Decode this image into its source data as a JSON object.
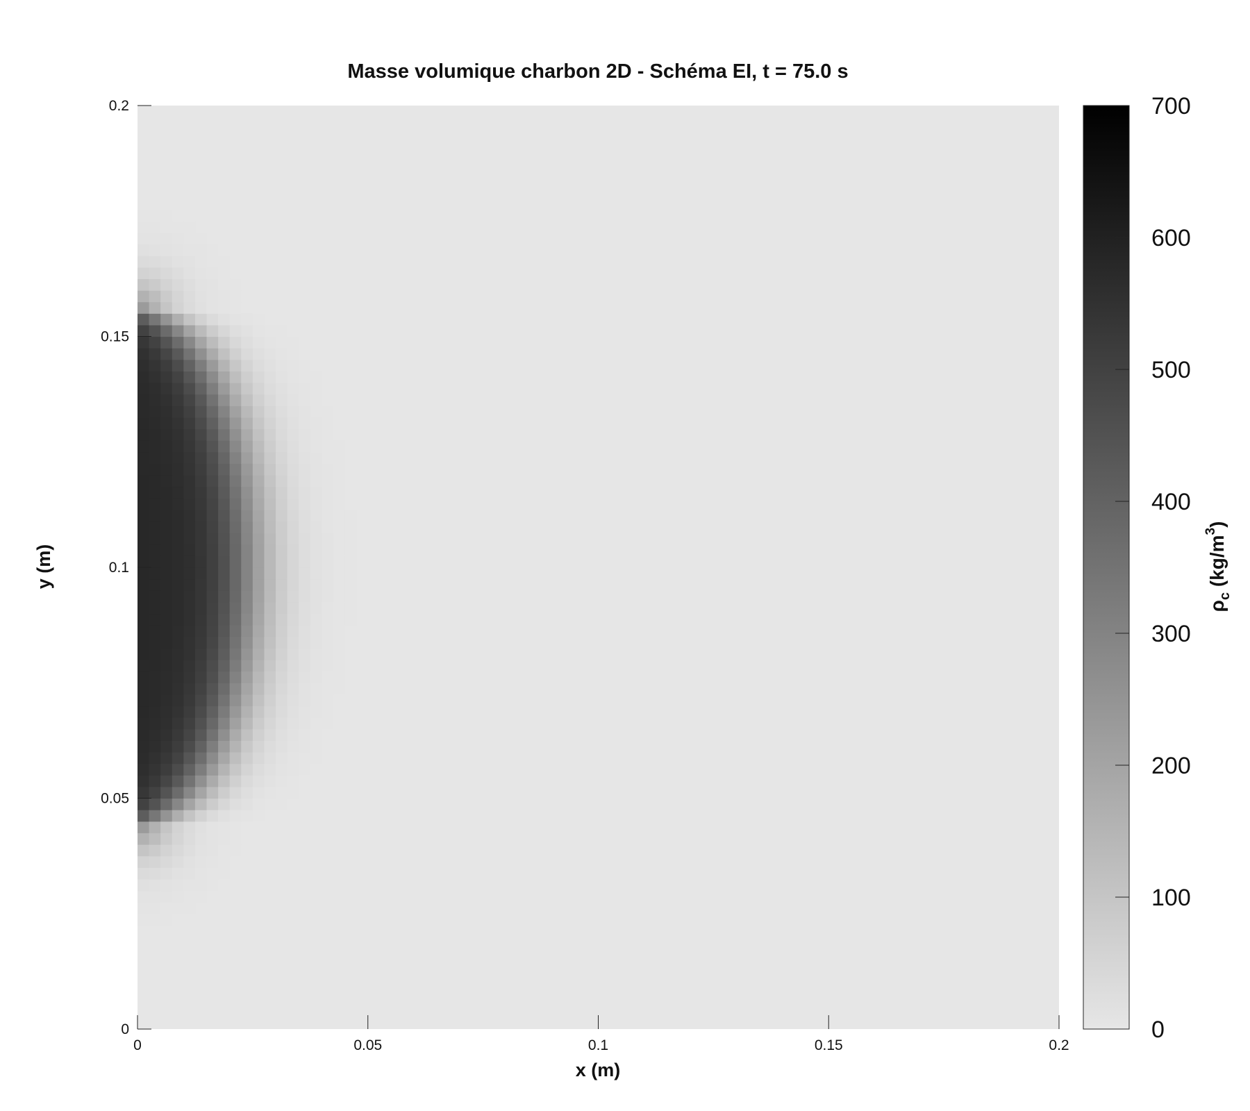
{
  "chart_data": {
    "type": "heatmap",
    "title": "Masse volumique charbon 2D - Schéma EI, t = 75.0 s",
    "xlabel": "x (m)",
    "ylabel": "y (m)",
    "xlim": [
      0,
      0.2
    ],
    "ylim": [
      0,
      0.2
    ],
    "x_ticks": [
      "0",
      "0.05",
      "0.1",
      "0.15",
      "0.2"
    ],
    "x_tick_values": [
      0,
      0.05,
      0.1,
      0.15,
      0.2
    ],
    "y_ticks": [
      "0",
      "0.05",
      "0.1",
      "0.15",
      "0.2"
    ],
    "y_tick_values": [
      0,
      0.05,
      0.1,
      0.15,
      0.2
    ],
    "grid": false,
    "colormap": "gray_reversed",
    "colorbar": {
      "label": "ρc (kg/m3)",
      "label_rho": "ρ",
      "label_sub": "c",
      "label_unit_pre": " (kg/m",
      "label_unit_sup": "3",
      "label_unit_post": ")",
      "range": [
        0,
        700
      ],
      "ticks": [
        "0",
        "100",
        "200",
        "300",
        "400",
        "500",
        "600",
        "700"
      ],
      "tick_values": [
        0,
        100,
        200,
        300,
        400,
        500,
        600,
        700
      ],
      "low_color": "#e6e6e6",
      "high_color": "#000000"
    },
    "field": {
      "description_of_values": "uniform grid of density samples",
      "grid_nx": 80,
      "grid_ny": 80,
      "background_value": 0,
      "core_value": 580,
      "core_center_y": 0.1,
      "core_half_height": 0.055,
      "core_depth_x": 0.024,
      "transition_width": 0.009
    }
  }
}
